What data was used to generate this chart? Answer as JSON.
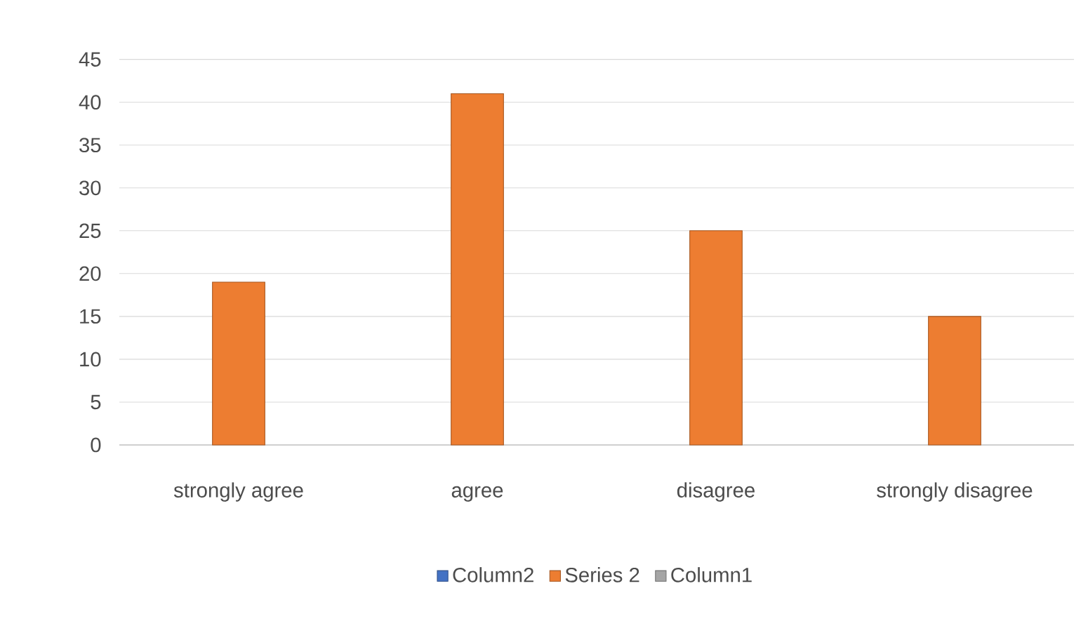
{
  "chart_data": {
    "type": "bar",
    "categories": [
      "strongly agree",
      "agree",
      "disagree",
      "strongly disagree"
    ],
    "series": [
      {
        "name": "Column2",
        "color": "#4472c4",
        "values": [
          null,
          null,
          null,
          null
        ]
      },
      {
        "name": "Series 2",
        "color": "#ed7d31",
        "values": [
          19,
          41,
          25,
          15
        ]
      },
      {
        "name": "Column1",
        "color": "#a5a5a5",
        "values": [
          null,
          null,
          null,
          null
        ]
      }
    ],
    "ylim": [
      0,
      45
    ],
    "yticks": [
      0,
      5,
      10,
      15,
      20,
      25,
      30,
      35,
      40,
      45
    ],
    "grid": "y",
    "legend": "bottom"
  }
}
